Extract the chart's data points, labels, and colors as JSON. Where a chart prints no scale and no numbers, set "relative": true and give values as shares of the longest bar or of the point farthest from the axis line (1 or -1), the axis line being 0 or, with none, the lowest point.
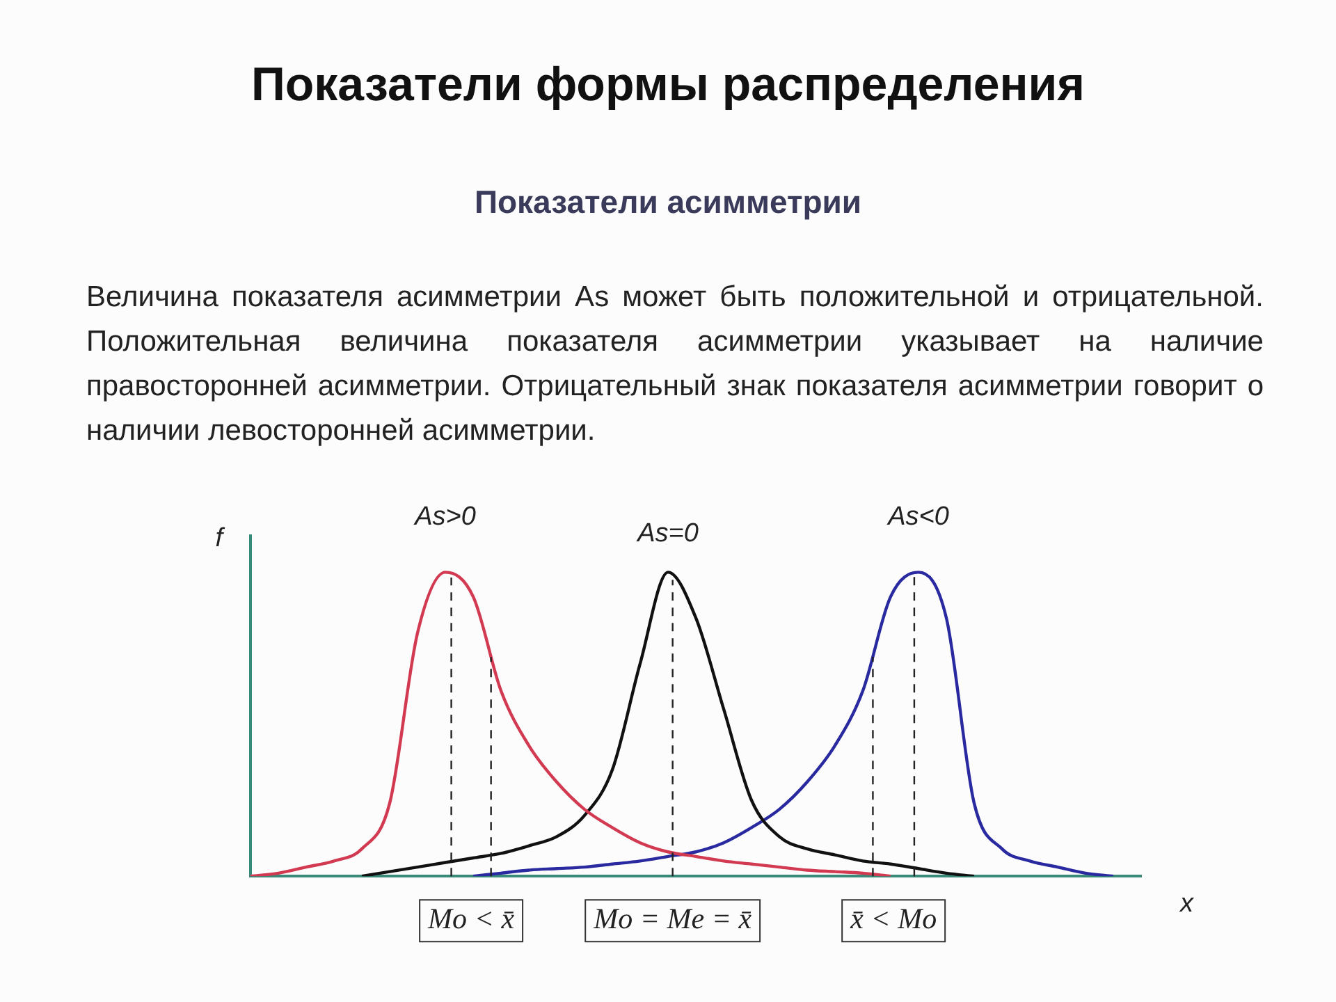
{
  "chart_data": {
    "type": "line",
    "title": "Показатели формы распределения",
    "subtitle": "Показатели асимметрии",
    "xlabel": "x",
    "ylabel": "f",
    "relative": true,
    "legend": false,
    "grid": false,
    "marker": "none",
    "categories": [
      null,
      null,
      null,
      null,
      null,
      null,
      null,
      null,
      null,
      null,
      null,
      null,
      null,
      null,
      null,
      null,
      null,
      null,
      null,
      null,
      null,
      null,
      null,
      null,
      null,
      null,
      null,
      null,
      null,
      null,
      null,
      null,
      null
    ],
    "series": [
      {
        "color": "#d23a52",
        "values": [
          0,
          0.01,
          0.03,
          0.05,
          0.09,
          0.24,
          0.8,
          1,
          0.92,
          0.61,
          0.43,
          0.31,
          0.22,
          0.16,
          0.11,
          0.08,
          0.065,
          0.05,
          0.04,
          0.03,
          0.02,
          0.015,
          0.01,
          0,
          null,
          null,
          null,
          null,
          null,
          null,
          null,
          null,
          null
        ]
      },
      {
        "color": "#111111",
        "values": [
          null,
          null,
          null,
          null,
          0,
          0.015,
          0.03,
          0.045,
          0.06,
          0.075,
          0.1,
          0.13,
          0.2,
          0.35,
          0.7,
          1,
          0.85,
          0.55,
          0.25,
          0.13,
          0.09,
          0.07,
          0.05,
          0.04,
          0.025,
          0.01,
          0,
          null,
          null,
          null,
          null,
          null,
          null
        ]
      },
      {
        "color": "#2a2aa0",
        "values": [
          null,
          null,
          null,
          null,
          null,
          null,
          null,
          null,
          0,
          0.01,
          0.02,
          0.025,
          0.03,
          0.04,
          0.05,
          0.065,
          0.08,
          0.11,
          0.16,
          0.22,
          0.31,
          0.43,
          0.61,
          0.92,
          1,
          0.85,
          0.24,
          0.09,
          0.05,
          0.03,
          0.01,
          0,
          null
        ]
      }
    ],
    "annotations": [
      "Величина показателя асимметрии As может быть положительной и отрицательной. Положительная величина показателя асимметрии указывает на наличие правосторонней асимметрии. Отрицательный знак показателя асимметрии говорит о наличии левосторонней асимметрии.",
      "As>0",
      "As=0",
      "As<0",
      "Mo < x̄",
      "Mo = Me = x̄",
      "x̄ < Mo"
    ]
  }
}
